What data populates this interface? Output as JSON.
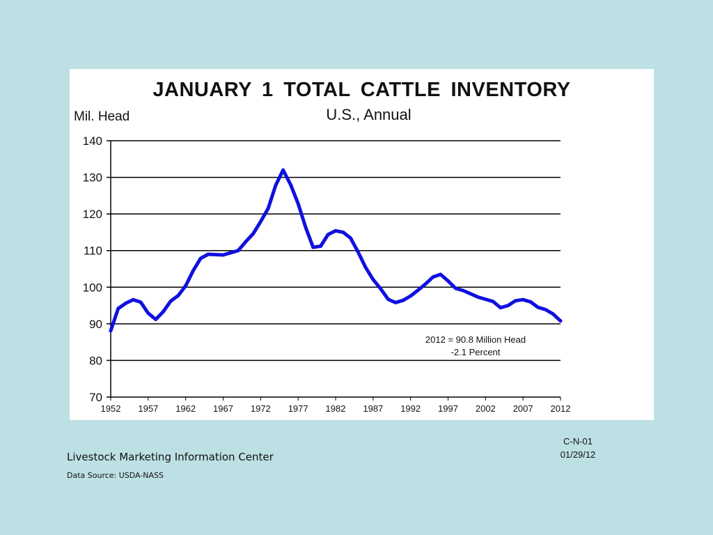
{
  "chart_data": {
    "type": "line",
    "title": "JANUARY  1  TOTAL  CATTLE  INVENTORY",
    "subtitle": "U.S., Annual",
    "ylabel": "Mil. Head",
    "xlabel": "",
    "ylim": [
      70,
      140
    ],
    "xlim": [
      1952,
      2012
    ],
    "yticks": [
      70,
      80,
      90,
      100,
      110,
      120,
      130,
      140
    ],
    "xticks": [
      1952,
      1957,
      1962,
      1967,
      1972,
      1977,
      1982,
      1987,
      1992,
      1997,
      2002,
      2007,
      2012
    ],
    "grid": true,
    "series_color": "#1010e0",
    "series": [
      {
        "x": [
          1952,
          1953,
          1954,
          1955,
          1956,
          1957,
          1958,
          1959,
          1960,
          1961,
          1962,
          1963,
          1964,
          1965,
          1966,
          1967,
          1968,
          1969,
          1970,
          1971,
          1972,
          1973,
          1974,
          1975,
          1976,
          1977,
          1978,
          1979,
          1980,
          1981,
          1982,
          1983,
          1984,
          1985,
          1986,
          1987,
          1988,
          1989,
          1990,
          1991,
          1992,
          1993,
          1994,
          1995,
          1996,
          1997,
          1998,
          1999,
          2000,
          2001,
          2002,
          2003,
          2004,
          2005,
          2006,
          2007,
          2008,
          2009,
          2010,
          2011,
          2012
        ],
        "values": [
          88.1,
          94.2,
          95.6,
          96.6,
          95.9,
          92.9,
          91.2,
          93.3,
          96.2,
          97.7,
          100.4,
          104.5,
          107.9,
          109.0,
          108.9,
          108.8,
          109.4,
          110.0,
          112.4,
          114.6,
          117.9,
          121.5,
          127.8,
          132.0,
          128.0,
          122.8,
          116.4,
          110.9,
          111.2,
          114.4,
          115.4,
          115.0,
          113.4,
          109.6,
          105.4,
          102.1,
          99.6,
          96.7,
          95.8,
          96.4,
          97.6,
          99.2,
          100.9,
          102.8,
          103.5,
          101.7,
          99.7,
          99.1,
          98.2,
          97.3,
          96.7,
          96.1,
          94.4,
          95.0,
          96.3,
          96.6,
          96.0,
          94.5,
          93.9,
          92.7,
          90.8
        ]
      }
    ],
    "annotations": [
      "2012 = 90.8 Million Head",
      "-2.1 Percent"
    ]
  },
  "footer": {
    "org": "Livestock Marketing Information Center",
    "source": "Data Source:  USDA-NASS",
    "code": "C-N-01",
    "date": "01/29/12"
  }
}
